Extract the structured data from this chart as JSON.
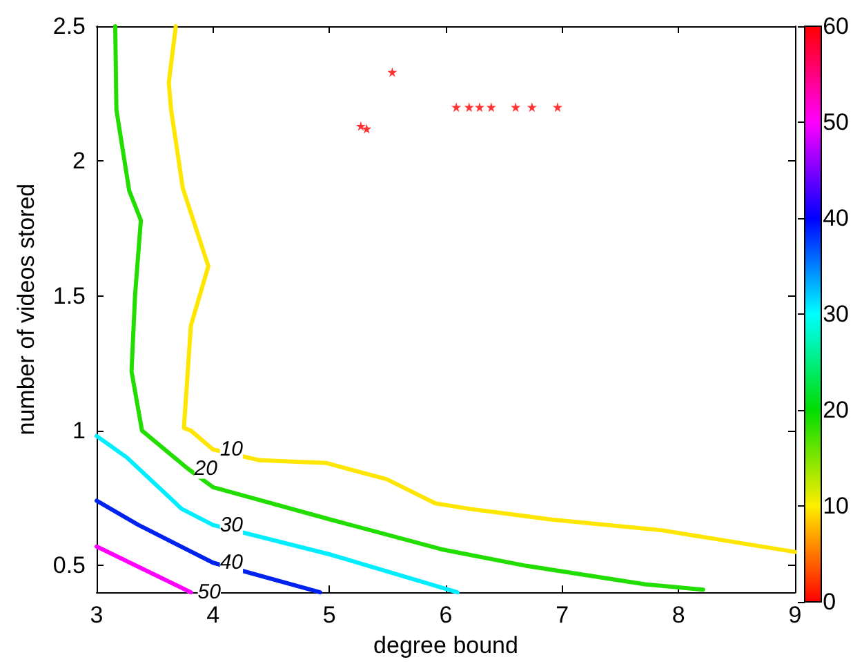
{
  "chart_data": {
    "type": "line",
    "xlabel": "degree bound",
    "ylabel": "number of videos stored",
    "xlim": [
      3,
      9
    ],
    "xticks": [
      3,
      4,
      5,
      6,
      7,
      8,
      9
    ],
    "ylim": [
      0.4,
      2.5
    ],
    "yticks": [
      0.5,
      1,
      1.5,
      2,
      2.5
    ],
    "clim": [
      0,
      60
    ],
    "cticks": [
      0,
      10,
      20,
      30,
      40,
      50,
      60
    ],
    "grid": false,
    "legend": false,
    "marker": "none",
    "series": [
      {
        "name": "10",
        "color": "#ffe600",
        "x": [
          3.68,
          3.62,
          3.64,
          3.74,
          3.96,
          3.81,
          3.75,
          3.81,
          4.0,
          4.4,
          4.97,
          5.49,
          5.91,
          6.2,
          6.91,
          7.86,
          9
        ],
        "values": [
          2.5,
          2.29,
          2.19,
          1.9,
          1.61,
          1.39,
          1.01,
          1.0,
          0.93,
          0.89,
          0.88,
          0.82,
          0.73,
          0.71,
          0.67,
          0.63,
          0.55
        ]
      },
      {
        "name": "20",
        "color": "#22dd00",
        "x": [
          3.16,
          3.17,
          3.28,
          3.38,
          3.33,
          3.3,
          3.39,
          3.78,
          4.0,
          5.01,
          5.96,
          6.67,
          7.71,
          8.21
        ],
        "values": [
          2.5,
          2.19,
          1.89,
          1.78,
          1.5,
          1.22,
          1.0,
          0.86,
          0.79,
          0.67,
          0.56,
          0.5,
          0.43,
          0.41
        ]
      },
      {
        "name": "30",
        "color": "#00eeff",
        "x": [
          3,
          3.26,
          3.73,
          4.0,
          5.01,
          6.1
        ],
        "values": [
          0.98,
          0.9,
          0.71,
          0.65,
          0.54,
          0.4
        ]
      },
      {
        "name": "40",
        "color": "#0022ee",
        "x": [
          3,
          3.36,
          4.0,
          4.92
        ],
        "values": [
          0.74,
          0.65,
          0.51,
          0.4
        ]
      },
      {
        "name": "50",
        "color": "#ff00ff",
        "x": [
          3,
          3.81
        ],
        "values": [
          0.57,
          0.4
        ]
      },
      {
        "type": "scatter",
        "marker": "star",
        "color": "#ff0000",
        "x": [
          5.54,
          5.27,
          5.32,
          6.09,
          6.2,
          6.29,
          6.39,
          6.6,
          6.74,
          6.96
        ],
        "values": [
          2.33,
          2.13,
          2.12,
          2.2,
          2.2,
          2.2,
          2.2,
          2.2,
          2.2,
          2.2
        ]
      }
    ]
  }
}
